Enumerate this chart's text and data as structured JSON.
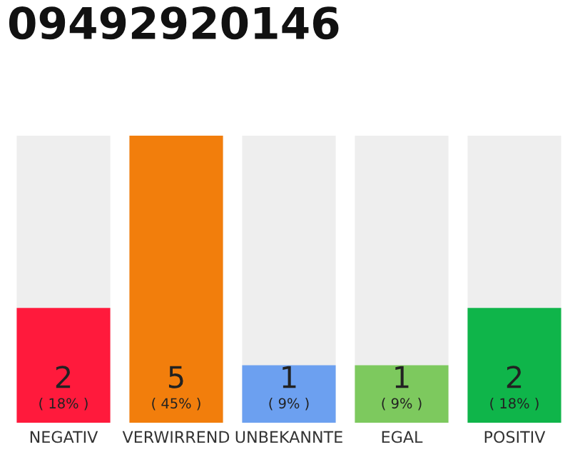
{
  "chart_data": {
    "type": "bar",
    "title": "09492920146",
    "categories": [
      "NEGATIV",
      "VERWIRREND",
      "UNBEKANNTE",
      "EGAL",
      "POSITIV"
    ],
    "values": [
      2,
      5,
      1,
      1,
      2
    ],
    "colors": [
      "#ff1a3c",
      "#f27e0c",
      "#6ca0f0",
      "#7dc95e",
      "#0fb54a"
    ],
    "ylim": [
      0,
      5
    ],
    "data_labels": true,
    "annotations": [
      "( 18% )",
      "( 45% )",
      "( 9% )",
      "( 9% )",
      "( 18% )"
    ],
    "grid": false,
    "legend": false
  }
}
